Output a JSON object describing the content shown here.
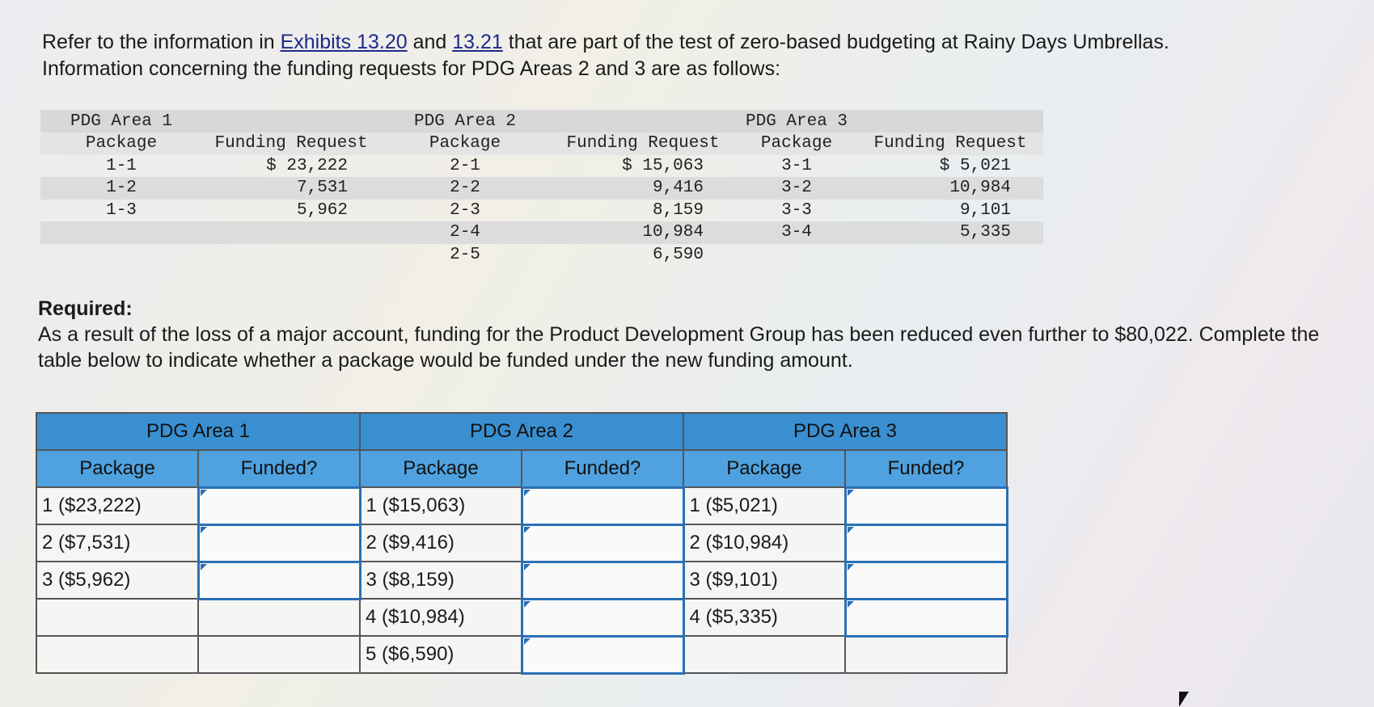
{
  "intro": {
    "line1_a": "Refer to the information in ",
    "link1": "Exhibits 13.20",
    "line1_b": " and ",
    "link2": "13.21",
    "line1_c": " that are part of the test of zero-based budgeting at Rainy Days Umbrellas.",
    "line2": "Information concerning the funding requests for PDG Areas 2 and 3 are as follows:"
  },
  "exhibit": {
    "area1_title": "PDG Area 1",
    "area2_title": "PDG Area 2",
    "area3_title": "PDG Area 3",
    "package_header": "Package",
    "funding_header": "Funding Request",
    "area1": [
      {
        "pkg": "1-1",
        "amt": "$ 23,222"
      },
      {
        "pkg": "1-2",
        "amt": "7,531"
      },
      {
        "pkg": "1-3",
        "amt": "5,962"
      }
    ],
    "area2": [
      {
        "pkg": "2-1",
        "amt": "$ 15,063"
      },
      {
        "pkg": "2-2",
        "amt": "9,416"
      },
      {
        "pkg": "2-3",
        "amt": "8,159"
      },
      {
        "pkg": "2-4",
        "amt": "10,984"
      },
      {
        "pkg": "2-5",
        "amt": "6,590"
      }
    ],
    "area3": [
      {
        "pkg": "3-1",
        "amt": "$ 5,021"
      },
      {
        "pkg": "3-2",
        "amt": "10,984"
      },
      {
        "pkg": "3-3",
        "amt": "9,101"
      },
      {
        "pkg": "3-4",
        "amt": "5,335"
      }
    ]
  },
  "required": {
    "title": "Required:",
    "text": "As a result of the loss of a major account, funding for the Product Development Group has been reduced even further to $80,022. Complete the table below to indicate whether a package would be funded under the new funding amount."
  },
  "grid": {
    "area1": "PDG Area 1",
    "area2": "PDG Area 2",
    "area3": "PDG Area 3",
    "package": "Package",
    "funded": "Funded?",
    "rows": [
      [
        "1 ($23,222)",
        "1 ($15,063)",
        "1 ($5,021)"
      ],
      [
        "2 ($7,531)",
        "2 ($9,416)",
        "2 ($10,984)"
      ],
      [
        "3 ($5,962)",
        "3 ($8,159)",
        "3 ($9,101)"
      ],
      [
        "",
        "4 ($10,984)",
        "4 ($5,335)"
      ],
      [
        "",
        "5 ($6,590)",
        ""
      ]
    ]
  }
}
